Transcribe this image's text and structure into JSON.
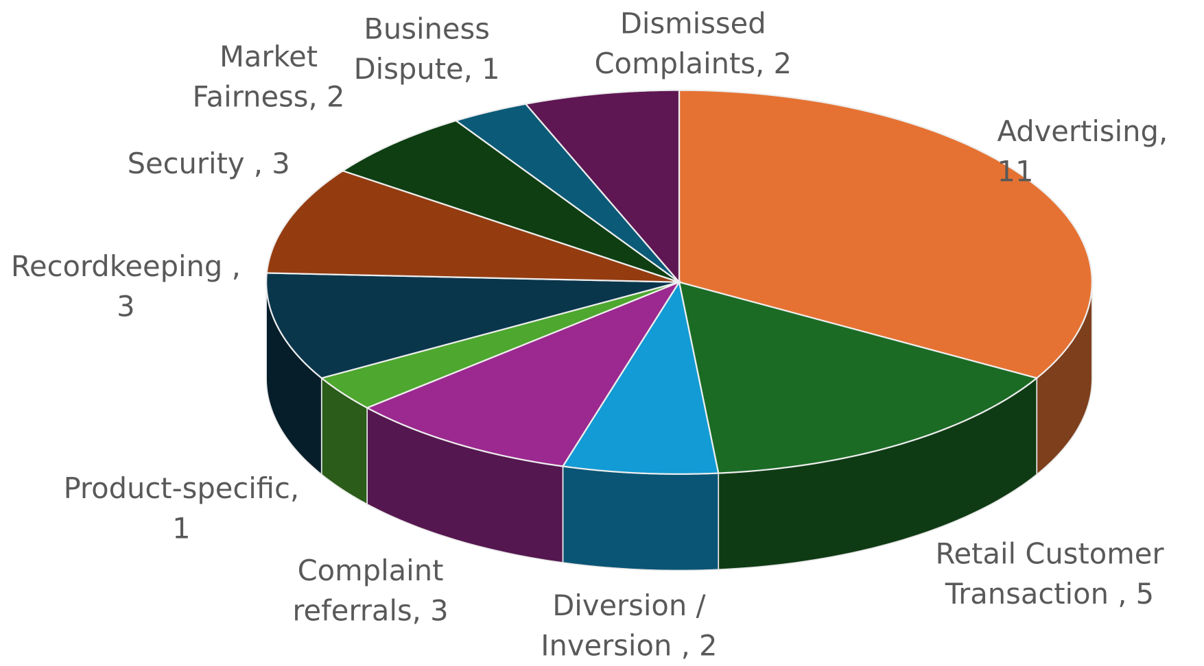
{
  "chart_data": {
    "type": "pie3d",
    "categories": [
      "Advertising",
      "Retail Customer Transaction ",
      "Diversion / Inversion ",
      "Complaint referrals",
      "Product-specific",
      "Recordkeeping ",
      "Security ",
      "Market Fairness",
      "Business Dispute",
      "Dismissed Complaints"
    ],
    "values": [
      11,
      5,
      2,
      3,
      1,
      3,
      3,
      2,
      1,
      2
    ],
    "colors": [
      "#e57232",
      "#1b6b25",
      "#129bd4",
      "#9b298f",
      "#4ea72e",
      "#0a364c",
      "#943c10",
      "#0e3e12",
      "#0b5a78",
      "#5e1753"
    ],
    "label_separator": ", "
  }
}
